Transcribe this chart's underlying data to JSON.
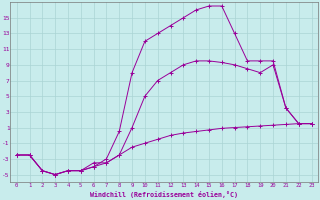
{
  "xlabel": "Windchill (Refroidissement éolien,°C)",
  "bg_color": "#c8ecec",
  "grid_color": "#aad4d4",
  "line_color": "#990099",
  "xlim": [
    -0.5,
    23.5
  ],
  "ylim": [
    -6.0,
    17.0
  ],
  "xticks": [
    0,
    1,
    2,
    3,
    4,
    5,
    6,
    7,
    8,
    9,
    10,
    11,
    12,
    13,
    14,
    15,
    16,
    17,
    18,
    19,
    20,
    21,
    22,
    23
  ],
  "yticks": [
    -5,
    -3,
    -1,
    1,
    3,
    5,
    7,
    9,
    11,
    13,
    15
  ],
  "curve1_x": [
    0,
    1,
    2,
    3,
    4,
    5,
    6,
    7,
    8,
    9,
    10,
    11,
    12,
    13,
    14,
    15,
    16,
    17,
    18,
    19,
    20,
    21,
    22,
    23
  ],
  "curve1_y": [
    -2.5,
    -2.5,
    -4.5,
    -5.0,
    -4.5,
    -4.5,
    -3.5,
    -3.5,
    -2.5,
    -1.5,
    -1.0,
    -0.5,
    0.0,
    0.3,
    0.5,
    0.7,
    0.9,
    1.0,
    1.1,
    1.2,
    1.3,
    1.4,
    1.5,
    1.5
  ],
  "curve2_x": [
    0,
    1,
    2,
    3,
    4,
    5,
    6,
    7,
    8,
    9,
    10,
    11,
    12,
    13,
    14,
    15,
    16,
    17,
    18,
    19,
    20,
    21,
    22,
    23
  ],
  "curve2_y": [
    -2.5,
    -2.5,
    -4.5,
    -5.0,
    -4.5,
    -4.5,
    -4.0,
    -3.5,
    -2.5,
    1.0,
    5.0,
    7.0,
    8.0,
    9.0,
    9.5,
    9.5,
    9.3,
    9.0,
    8.5,
    8.0,
    9.0,
    3.5,
    1.5,
    1.5
  ],
  "curve3_x": [
    0,
    1,
    2,
    3,
    4,
    5,
    6,
    7,
    8,
    9,
    10,
    11,
    12,
    13,
    14,
    15,
    16,
    17,
    18,
    19,
    20,
    21,
    22,
    23
  ],
  "curve3_y": [
    -2.5,
    -2.5,
    -4.5,
    -5.0,
    -4.5,
    -4.5,
    -4.0,
    -3.0,
    0.5,
    8.0,
    12.0,
    13.0,
    14.0,
    15.0,
    16.0,
    16.5,
    16.5,
    13.0,
    9.5,
    9.5,
    9.5,
    3.5,
    1.5,
    1.5
  ]
}
